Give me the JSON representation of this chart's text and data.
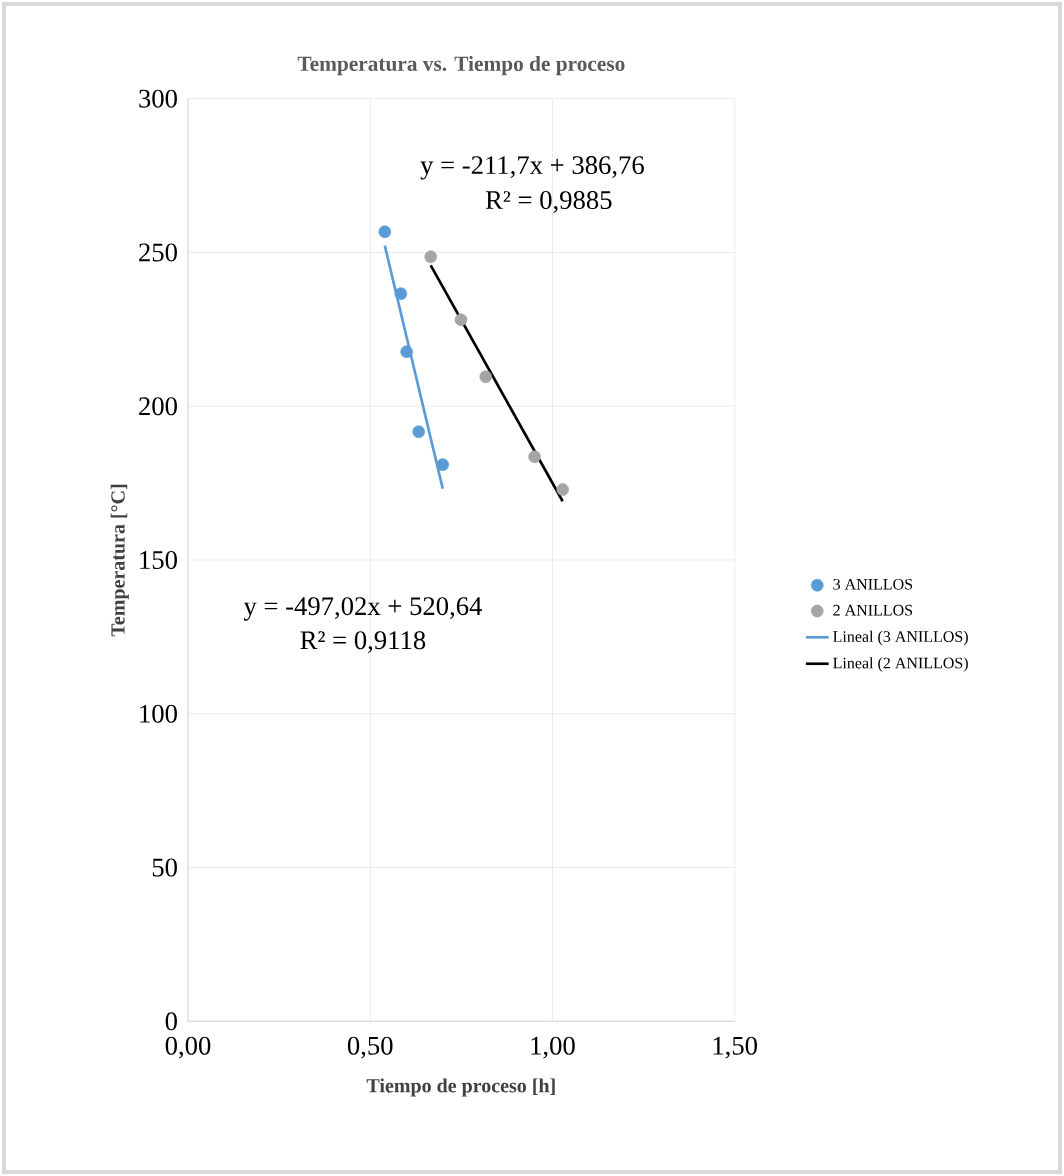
{
  "chart_data": {
    "type": "scatter",
    "title": "Temperatura vs. Tiempo de proceso",
    "xlabel": "Tiempo de proceso [h]",
    "ylabel": "Temperatura [°C]",
    "series": [
      {
        "name": "3 ANILLOS",
        "color": "#5b9bd5",
        "x": [
          0.54,
          0.584,
          0.6,
          0.633,
          0.699
        ],
        "values": [
          256.7,
          236.6,
          217.7,
          191.7,
          181.0
        ]
      },
      {
        "name": "2 ANILLOS",
        "color": "#a5a5a5",
        "x": [
          0.666,
          0.749,
          0.817,
          0.951,
          1.028
        ],
        "values": [
          248.6,
          228.1,
          209.6,
          183.6,
          172.9
        ]
      },
      {
        "name": "Lineal (3 ANILLOS)",
        "type": "line",
        "line_style": "solid",
        "color": "#5b9bd5",
        "x": [
          0.54,
          0.699
        ],
        "values": [
          252.2,
          173.2
        ]
      },
      {
        "name": "Lineal (2 ANILLOS)",
        "type": "line",
        "line_style": "solid",
        "color": "#000000",
        "x": [
          0.666,
          1.028
        ],
        "values": [
          245.8,
          169.1
        ]
      }
    ],
    "annotations": [
      "y = -211,7x + 386,76",
      "R² = 0,9885",
      "y = -497,02x + 520,64",
      "R² = 0,9118"
    ],
    "xlim": [
      0,
      1.5
    ],
    "ylim": [
      0,
      300
    ],
    "xticks": [
      {
        "value": 0,
        "label": "0,00"
      },
      {
        "value": 0.5,
        "label": "0,50"
      },
      {
        "value": 1.0,
        "label": "1,00"
      },
      {
        "value": 1.5,
        "label": "1,50"
      }
    ],
    "yticks": [
      0,
      50,
      100,
      150,
      200,
      250,
      300
    ],
    "grid": true,
    "legend": "right"
  }
}
